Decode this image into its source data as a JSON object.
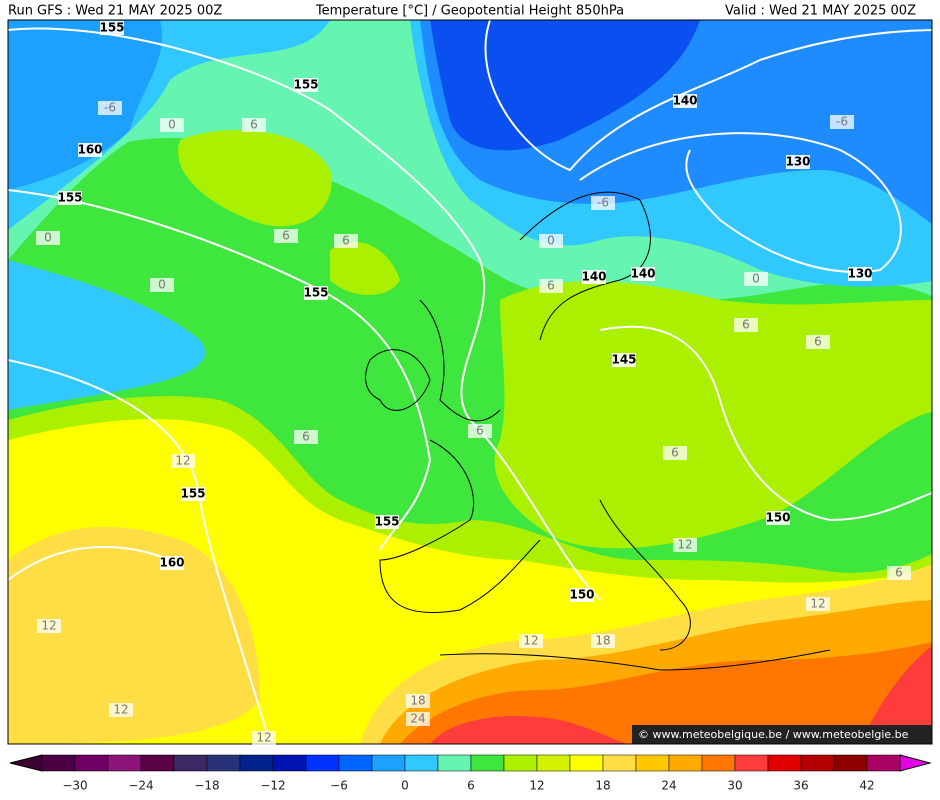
{
  "header": {
    "left": "Run GFS : Wed 21 MAY 2025 00Z",
    "center": "Temperature [°C] / Geopotential Height 850hPa",
    "right": "Valid : Wed 21 MAY 2025 00Z"
  },
  "contour_labels": [
    "155",
    "155",
    "160",
    "155",
    "155",
    "140",
    "130",
    "130",
    "140",
    "140",
    "145",
    "155",
    "155",
    "160",
    "150",
    "150",
    "-6",
    "0",
    "6",
    "0",
    "6",
    "6",
    "0",
    "-6",
    "-6",
    "0",
    "6",
    "0",
    "6",
    "6",
    "6",
    "6",
    "6",
    "12",
    "12",
    "6",
    "12",
    "12",
    "12",
    "18",
    "12",
    "18",
    "24",
    "12"
  ],
  "colorbar": {
    "ticks": [
      "−30",
      "−24",
      "−18",
      "−12",
      "−6",
      "0",
      "6",
      "12",
      "18",
      "24",
      "30",
      "36",
      "42"
    ]
  },
  "credit": "© www.meteobelgique.be / www.meteobelgie.be"
}
